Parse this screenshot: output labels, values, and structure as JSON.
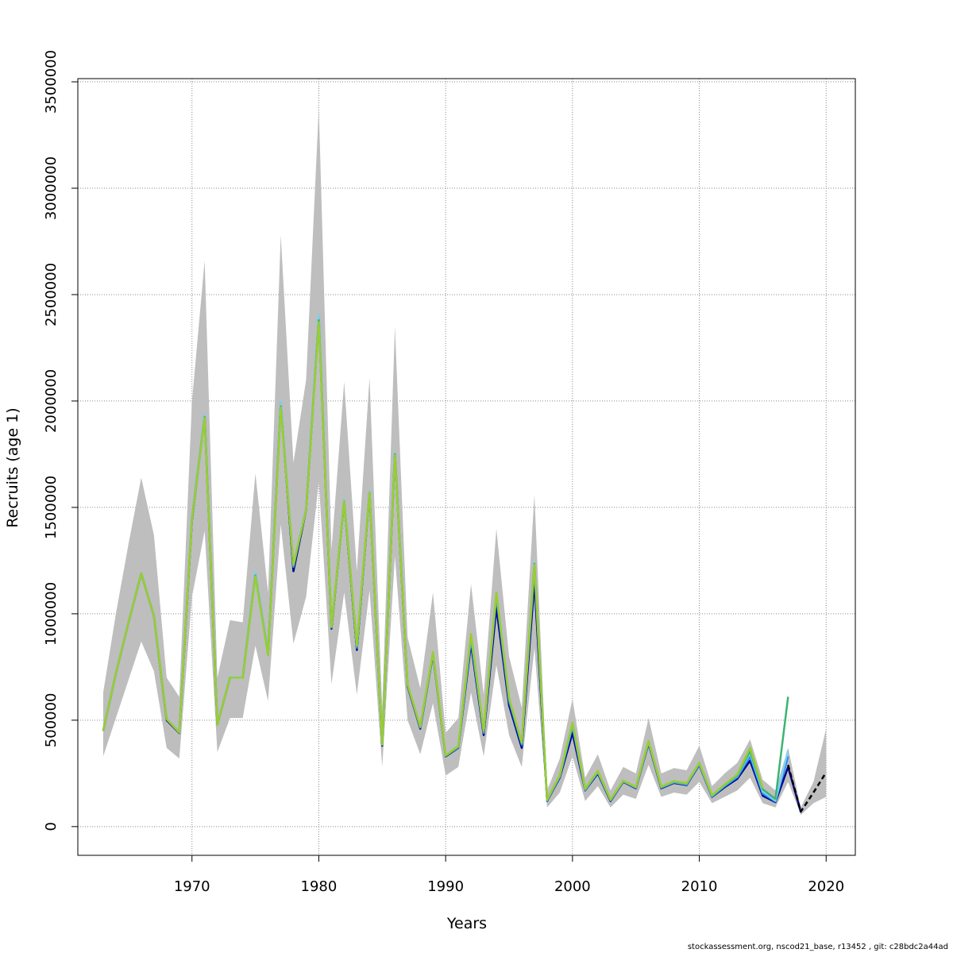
{
  "chart_data": {
    "type": "line",
    "title": "",
    "xlabel": "Years",
    "ylabel": "Recruits (age 1)",
    "xlim": [
      1961,
      2022.3
    ],
    "ylim": [
      -135000,
      3515000
    ],
    "x_ticks": [
      1970,
      1980,
      1990,
      2000,
      2010,
      2020
    ],
    "x_tick_labels": [
      "1970",
      "1980",
      "1990",
      "2000",
      "2010",
      "2020"
    ],
    "y_ticks": [
      0,
      500000,
      1000000,
      1500000,
      2000000,
      2500000,
      3000000,
      3500000
    ],
    "y_tick_labels": [
      "0",
      "500000",
      "1000000",
      "1500000",
      "2000000",
      "2500000",
      "3000000",
      "3500000"
    ],
    "grid": true,
    "legend": "none",
    "confidence_band": {
      "color": "#bebebe",
      "x": [
        1963,
        1964,
        1965,
        1966,
        1967,
        1968,
        1969,
        1970,
        1971,
        1972,
        1973,
        1974,
        1975,
        1976,
        1977,
        1978,
        1979,
        1980,
        1981,
        1982,
        1983,
        1984,
        1985,
        1986,
        1987,
        1988,
        1989,
        1990,
        1991,
        1992,
        1993,
        1994,
        1995,
        1996,
        1997,
        1998,
        1999,
        2000,
        2001,
        2002,
        2003,
        2004,
        2005,
        2006,
        2007,
        2008,
        2009,
        2010,
        2011,
        2012,
        2013,
        2014,
        2015,
        2016,
        2017,
        2018,
        2019,
        2020
      ],
      "lower": [
        330000,
        510000,
        690000,
        870000,
        730000,
        370000,
        320000,
        1080000,
        1390000,
        350000,
        510000,
        510000,
        850000,
        590000,
        1420000,
        860000,
        1080000,
        1620000,
        670000,
        1100000,
        620000,
        1110000,
        280000,
        1270000,
        500000,
        340000,
        580000,
        240000,
        280000,
        630000,
        330000,
        760000,
        430000,
        280000,
        840000,
        90000,
        160000,
        330000,
        120000,
        190000,
        90000,
        150000,
        130000,
        290000,
        140000,
        160000,
        150000,
        210000,
        110000,
        140000,
        170000,
        230000,
        110000,
        90000,
        210000,
        55000,
        110000,
        140000
      ],
      "upper": [
        630000,
        1000000,
        1330000,
        1640000,
        1370000,
        700000,
        610000,
        2000000,
        2660000,
        700000,
        970000,
        960000,
        1660000,
        1100000,
        2780000,
        1710000,
        2100000,
        3380000,
        1300000,
        2090000,
        1200000,
        2110000,
        560000,
        2350000,
        890000,
        650000,
        1100000,
        440000,
        510000,
        1140000,
        620000,
        1400000,
        800000,
        560000,
        1560000,
        170000,
        320000,
        600000,
        230000,
        340000,
        170000,
        280000,
        250000,
        510000,
        250000,
        275000,
        265000,
        380000,
        190000,
        250000,
        300000,
        410000,
        220000,
        170000,
        370000,
        90000,
        210000,
        460000
      ]
    },
    "series": [
      {
        "color": "#00008b",
        "dash": "",
        "x": [
          1963,
          1964,
          1965,
          1966,
          1967,
          1968,
          1969,
          1970,
          1971,
          1972,
          1973,
          1974,
          1975,
          1976,
          1977,
          1978,
          1979,
          1980,
          1981,
          1982,
          1983,
          1984,
          1985,
          1986,
          1987,
          1988,
          1989,
          1990,
          1991,
          1992,
          1993,
          1994,
          1995,
          1996,
          1997,
          1998,
          1999,
          2000,
          2001,
          2002,
          2003,
          2004,
          2005,
          2006,
          2007,
          2008,
          2009,
          2010,
          2011,
          2012,
          2013,
          2014,
          2015,
          2016,
          2017,
          2018
        ],
        "values": [
          450000,
          720000,
          960000,
          1190000,
          990000,
          500000,
          440000,
          1440000,
          1930000,
          480000,
          700000,
          700000,
          1190000,
          810000,
          1990000,
          1200000,
          1490000,
          2390000,
          930000,
          1530000,
          830000,
          1570000,
          380000,
          1750000,
          660000,
          460000,
          810000,
          330000,
          370000,
          860000,
          430000,
          1030000,
          570000,
          370000,
          1150000,
          120000,
          230000,
          440000,
          170000,
          250000,
          120000,
          210000,
          180000,
          390000,
          180000,
          205000,
          195000,
          290000,
          140000,
          185000,
          225000,
          310000,
          145000,
          115000,
          280000,
          70000
        ]
      },
      {
        "color": "#1e90ff",
        "dash": "",
        "x": [
          1963,
          1964,
          1965,
          1966,
          1967,
          1968,
          1969,
          1970,
          1971,
          1972,
          1973,
          1974,
          1975,
          1976,
          1977,
          1978,
          1979,
          1980,
          1981,
          1982,
          1983,
          1984,
          1985,
          1986,
          1987,
          1988,
          1989,
          1990,
          1991,
          1992,
          1993,
          1994,
          1995,
          1996,
          1997,
          1998,
          1999,
          2000,
          2001,
          2002,
          2003,
          2004,
          2005,
          2006,
          2007,
          2008,
          2009,
          2010,
          2011,
          2012,
          2013,
          2014,
          2015,
          2016,
          2017
        ],
        "values": [
          450000,
          720000,
          960000,
          1190000,
          990000,
          505000,
          442000,
          1450000,
          1935000,
          482000,
          702000,
          702000,
          1195000,
          812000,
          1995000,
          1220000,
          1495000,
          2400000,
          935000,
          1535000,
          840000,
          1575000,
          385000,
          1755000,
          665000,
          465000,
          815000,
          332000,
          372000,
          880000,
          440000,
          1080000,
          590000,
          385000,
          1210000,
          122000,
          235000,
          470000,
          172000,
          255000,
          123000,
          212000,
          182000,
          395000,
          183000,
          208000,
          198000,
          293000,
          142000,
          190000,
          232000,
          330000,
          155000,
          118000,
          330000
        ]
      },
      {
        "color": "#87ceeb",
        "dash": "",
        "x": [
          1963,
          1964,
          1965,
          1966,
          1967,
          1968,
          1969,
          1970,
          1971,
          1972,
          1973,
          1974,
          1975,
          1976,
          1977,
          1978,
          1979,
          1980,
          1981,
          1982,
          1983,
          1984,
          1985,
          1986,
          1987,
          1988,
          1989,
          1990,
          1991,
          1992,
          1993,
          1994,
          1995,
          1996,
          1997,
          1998,
          1999,
          2000,
          2001,
          2002,
          2003,
          2004,
          2005,
          2006,
          2007,
          2008,
          2009,
          2010,
          2011,
          2012,
          2013,
          2014,
          2015,
          2016,
          2017
        ],
        "values": [
          452000,
          722000,
          962000,
          1192000,
          992000,
          506000,
          443000,
          1452000,
          1937000,
          483000,
          703000,
          703000,
          1197000,
          813000,
          1997000,
          1230000,
          1497000,
          2405000,
          937000,
          1537000,
          845000,
          1577000,
          388000,
          1757000,
          668000,
          468000,
          818000,
          334000,
          374000,
          895000,
          447000,
          1095000,
          600000,
          392000,
          1240000,
          124000,
          238000,
          480000,
          174000,
          258000,
          125000,
          214000,
          184000,
          398000,
          185000,
          210000,
          200000,
          296000,
          144000,
          194000,
          238000,
          345000,
          165000,
          122000,
          360000
        ]
      },
      {
        "color": "#3cb371",
        "dash": "",
        "x": [
          1963,
          1964,
          1965,
          1966,
          1967,
          1968,
          1969,
          1970,
          1971,
          1972,
          1973,
          1974,
          1975,
          1976,
          1977,
          1978,
          1979,
          1980,
          1981,
          1982,
          1983,
          1984,
          1985,
          1986,
          1987,
          1988,
          1989,
          1990,
          1991,
          1992,
          1993,
          1994,
          1995,
          1996,
          1997,
          1998,
          1999,
          2000,
          2001,
          2002,
          2003,
          2004,
          2005,
          2006,
          2007,
          2008,
          2009,
          2010,
          2011,
          2012,
          2013,
          2014,
          2015,
          2016,
          2017
        ],
        "values": [
          450000,
          720000,
          960000,
          1190000,
          990000,
          505000,
          442000,
          1448000,
          1925000,
          480000,
          700000,
          700000,
          1180000,
          808000,
          1975000,
          1225000,
          1490000,
          2380000,
          935000,
          1530000,
          845000,
          1570000,
          385000,
          1750000,
          665000,
          468000,
          815000,
          332000,
          375000,
          900000,
          445000,
          1095000,
          600000,
          392000,
          1235000,
          125000,
          240000,
          485000,
          176000,
          260000,
          126000,
          215000,
          185000,
          400000,
          186000,
          212000,
          202000,
          298000,
          146000,
          196000,
          240000,
          355000,
          175000,
          130000,
          610000
        ]
      },
      {
        "color": "#9acd32",
        "dash": "",
        "x": [
          1963,
          1964,
          1965,
          1966,
          1967,
          1968,
          1969,
          1970,
          1971,
          1972,
          1973,
          1974,
          1975,
          1976,
          1977,
          1978,
          1979,
          1980,
          1981,
          1982,
          1983,
          1984,
          1985,
          1986,
          1987,
          1988,
          1989,
          1990,
          1991,
          1992,
          1993,
          1994,
          1995,
          1996,
          1997,
          1998,
          1999,
          2000,
          2001,
          2002,
          2003,
          2004,
          2005,
          2006,
          2007,
          2008,
          2009,
          2010,
          2011,
          2012,
          2013,
          2014,
          2015
        ],
        "values": [
          450000,
          720000,
          960000,
          1190000,
          990000,
          505000,
          442000,
          1445000,
          1920000,
          480000,
          700000,
          700000,
          1175000,
          805000,
          1970000,
          1230000,
          1490000,
          2370000,
          940000,
          1530000,
          850000,
          1570000,
          385000,
          1745000,
          668000,
          470000,
          820000,
          335000,
          378000,
          905000,
          450000,
          1100000,
          605000,
          395000,
          1230000,
          126000,
          242000,
          488000,
          178000,
          262000,
          127000,
          216000,
          186000,
          402000,
          188000,
          214000,
          204000,
          300000,
          148000,
          198000,
          245000,
          370000,
          180000
        ]
      },
      {
        "color": "#000000",
        "dash": "6,4",
        "x": [
          2017,
          2018,
          2019,
          2020
        ],
        "values": [
          290000,
          70000,
          160000,
          255000
        ]
      }
    ]
  },
  "footer": "stockassessment.org, nscod21_base, r13452 , git: c28bdc2a44ad"
}
